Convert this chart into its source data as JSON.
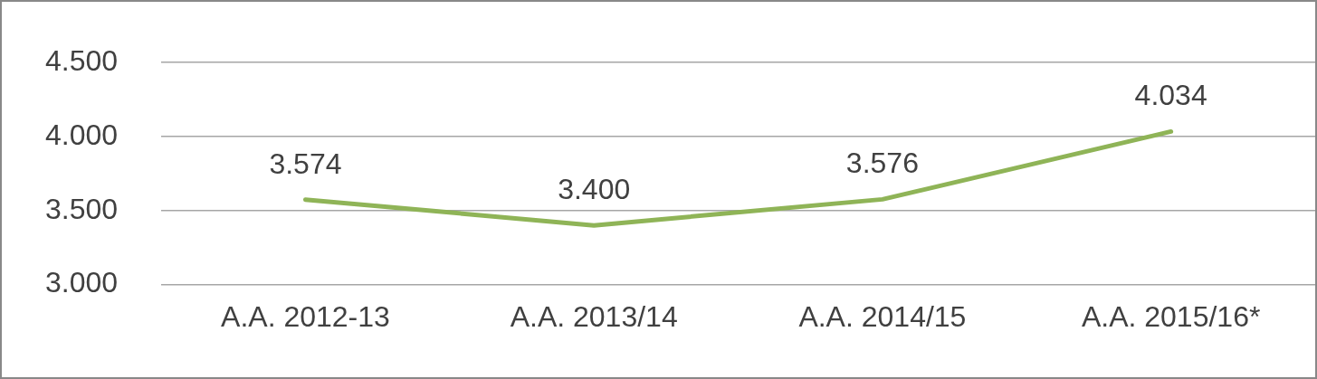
{
  "chart_data": {
    "type": "line",
    "categories": [
      "A.A. 2012-13",
      "A.A. 2013/14",
      "A.A. 2014/15",
      "A.A. 2015/16*"
    ],
    "values": [
      3574,
      3400,
      3576,
      4034
    ],
    "value_labels": [
      "3.574",
      "3.400",
      "3.576",
      "4.034"
    ],
    "color": "#8fb457",
    "ylim": [
      3000,
      4500
    ],
    "yticks": [
      {
        "value": 3000,
        "label": "3.000"
      },
      {
        "value": 3500,
        "label": "3.500"
      },
      {
        "value": 4000,
        "label": "4.000"
      },
      {
        "value": 4500,
        "label": "4.500"
      }
    ],
    "grid": "y",
    "legend": false,
    "marker": "none",
    "line_style": "solid"
  }
}
